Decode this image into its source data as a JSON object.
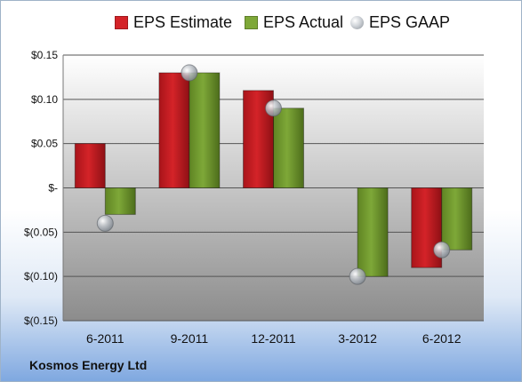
{
  "legend": {
    "estimate_label": "EPS Estimate",
    "actual_label": "EPS Actual",
    "gaap_label": "EPS GAAP"
  },
  "company": "Kosmos Energy Ltd",
  "colors": {
    "estimate": "#d42328",
    "actual": "#7ea838",
    "gaap": "#b9bec4",
    "plot_top": "#ffffff",
    "plot_bottom": "#8c8c8c",
    "grid": "#555555"
  },
  "chart_data": {
    "type": "bar",
    "categories": [
      "6-2011",
      "9-2011",
      "12-2011",
      "3-2012",
      "6-2012"
    ],
    "series": [
      {
        "name": "EPS Estimate",
        "type": "bar",
        "values": [
          0.05,
          0.13,
          0.11,
          null,
          -0.09
        ]
      },
      {
        "name": "EPS Actual",
        "type": "bar",
        "values": [
          -0.03,
          0.13,
          0.09,
          -0.1,
          -0.07
        ]
      },
      {
        "name": "EPS GAAP",
        "type": "scatter",
        "values": [
          -0.04,
          0.13,
          0.09,
          -0.1,
          -0.07
        ]
      }
    ],
    "ylim": [
      -0.15,
      0.15
    ],
    "yticks": [
      0.15,
      0.1,
      0.05,
      0,
      -0.05,
      -0.1,
      -0.15
    ],
    "ytick_labels": [
      "$0.15",
      "$0.10",
      "$0.05",
      "$-",
      "$(0.05)",
      "$(0.10)",
      "$(0.15)"
    ],
    "grid": true,
    "legend_position": "top"
  }
}
